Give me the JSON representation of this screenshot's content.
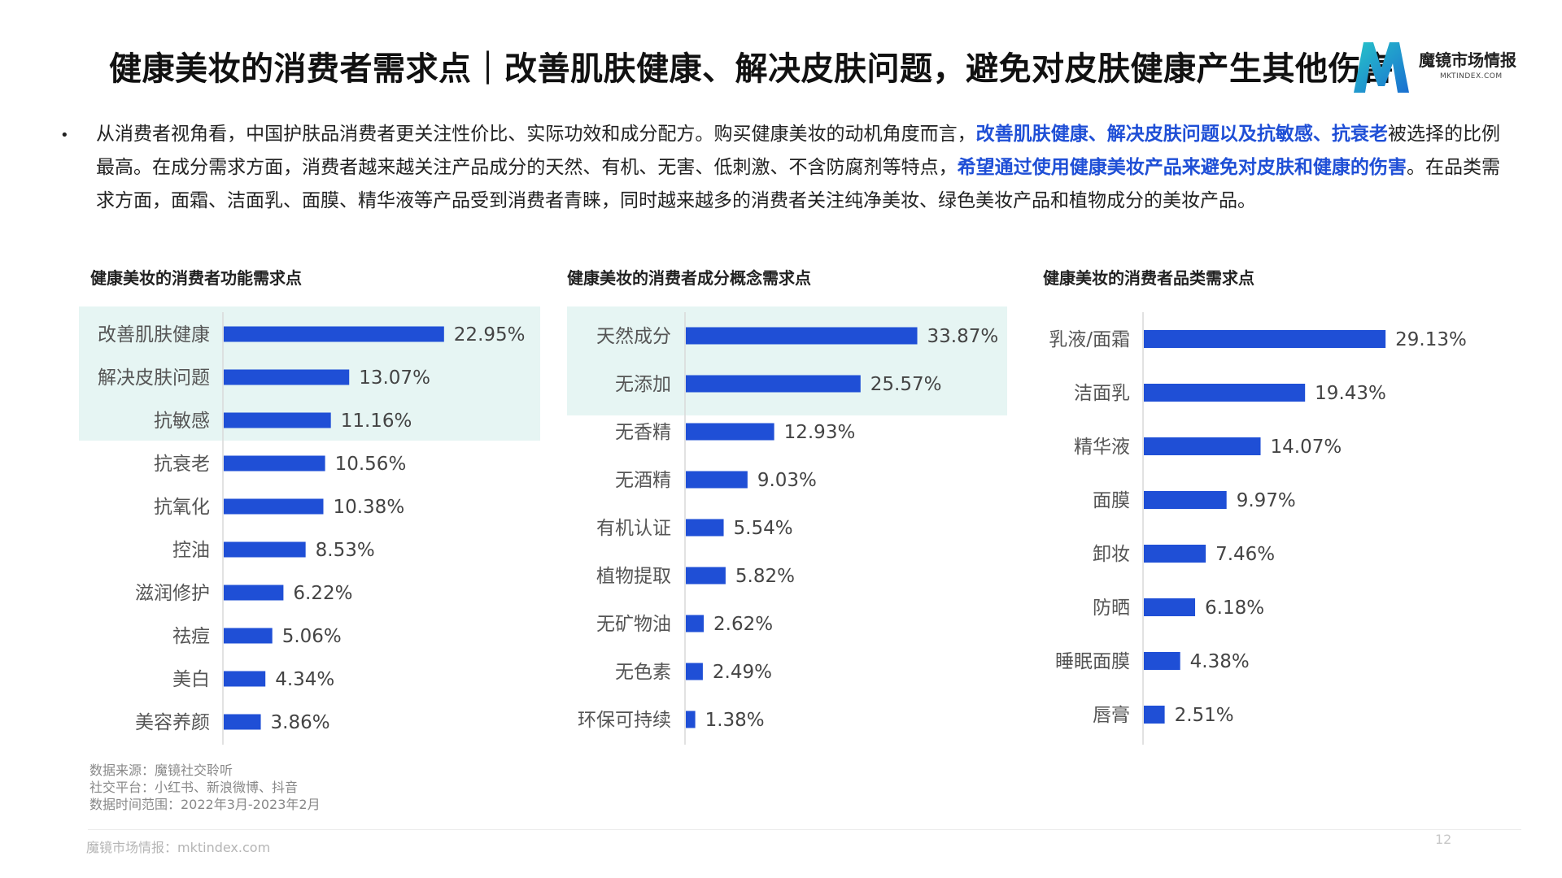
{
  "title": "健康美妆的消费者需求点｜改善肌肤健康、解决皮肤问题，避免对皮肤健康产生其他伤害",
  "logo": {
    "name": "魔镜市场情报",
    "domain": "MKTINDEX.COM"
  },
  "paragraph": {
    "seg1": "从消费者视角看，中国护肤品消费者更关注性价比、实际功效和成分配方。购买健康美妆的动机角度而言，",
    "hl1": "改善肌肤健康、解决皮肤问题以及抗敏感、抗衰老",
    "seg2": "被选择的比例最高。在成分需求方面，消费者越来越关注产品成分的天然、有机、无害、低刺激、不含防腐剂等特点，",
    "hl2": "希望通过使用健康美妆产品来避免对皮肤和健康的伤害",
    "seg3": "。在品类需求方面，面霜、洁面乳、面膜、精华液等产品受到消费者青睐，同时越来越多的消费者关注纯净美妆、绿色美妆产品和植物成分的美妆产品。"
  },
  "chart_titles": {
    "functional": "健康美妆的消费者功能需求点",
    "ingredient": "健康美妆的消费者成分概念需求点",
    "category": "健康美妆的消费者品类需求点"
  },
  "chart_data": [
    {
      "type": "bar",
      "orientation": "horizontal",
      "title": "健康美妆的消费者功能需求点",
      "categories": [
        "改善肌肤健康",
        "解决皮肤问题",
        "抗敏感",
        "抗衰老",
        "抗氧化",
        "控油",
        "滋润修护",
        "祛痘",
        "美白",
        "美容养颜"
      ],
      "values": [
        22.95,
        13.07,
        11.16,
        10.56,
        10.38,
        8.53,
        6.22,
        5.06,
        4.34,
        3.86
      ],
      "labels": [
        "22.95%",
        "13.07%",
        "11.16%",
        "10.56%",
        "10.38%",
        "8.53%",
        "6.22%",
        "5.06%",
        "4.34%",
        "3.86%"
      ],
      "highlight_top": 3,
      "bar_color": "#1f4fd6",
      "highlight_color": "#e6f5f3",
      "xlim": [
        0,
        25
      ]
    },
    {
      "type": "bar",
      "orientation": "horizontal",
      "title": "健康美妆的消费者成分概念需求点",
      "categories": [
        "天然成分",
        "无添加",
        "无香精",
        "无酒精",
        "有机认证",
        "植物提取",
        "无矿物油",
        "无色素",
        "环保可持续"
      ],
      "values": [
        33.87,
        25.57,
        12.93,
        9.03,
        5.54,
        5.82,
        2.62,
        2.49,
        1.38
      ],
      "labels": [
        "33.87%",
        "25.57%",
        "12.93%",
        "9.03%",
        "5.54%",
        "5.82%",
        "2.62%",
        "2.49%",
        "1.38%"
      ],
      "highlight_top": 2,
      "bar_color": "#1f4fd6",
      "highlight_color": "#e6f5f3",
      "xlim": [
        0,
        40
      ]
    },
    {
      "type": "bar",
      "orientation": "horizontal",
      "title": "健康美妆的消费者品类需求点",
      "categories": [
        "乳液/面霜",
        "洁面乳",
        "精华液",
        "面膜",
        "卸妆",
        "防晒",
        "睡眠面膜",
        "唇膏"
      ],
      "values": [
        29.13,
        19.43,
        14.07,
        9.97,
        7.46,
        6.18,
        4.38,
        2.51
      ],
      "labels": [
        "29.13%",
        "19.43%",
        "14.07%",
        "9.97%",
        "7.46%",
        "6.18%",
        "4.38%",
        "2.51%"
      ],
      "highlight_top": 0,
      "bar_color": "#1f4fd6",
      "highlight_color": "#e6f5f3",
      "xlim": [
        0,
        32
      ]
    }
  ],
  "footer": {
    "line1": "数据来源：魔镜社交聆听",
    "line2": "社交平台：小红书、新浪微博、抖音",
    "line3": "数据时间范围：2022年3月-2023年2月"
  },
  "page_footer": "魔镜市场情报：mktindex.com",
  "page_number": "12"
}
